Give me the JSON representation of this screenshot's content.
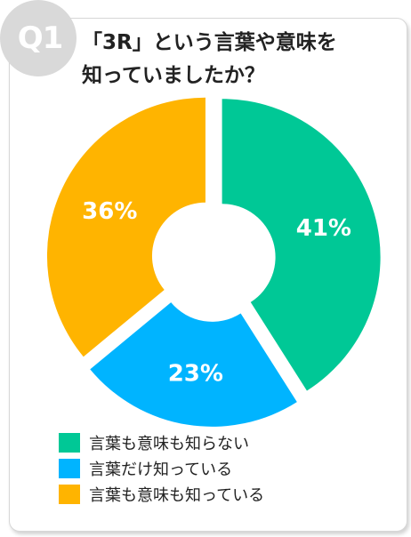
{
  "badge": {
    "label": "Q1"
  },
  "title": {
    "line1": "「3R」という言葉や意味を",
    "line2": "知っていましたか？"
  },
  "chart_data": {
    "type": "pie",
    "categories": [
      "言葉も意味も知らない",
      "言葉だけ知っている",
      "言葉も意味も知っている"
    ],
    "values": [
      41,
      23,
      36
    ],
    "value_labels": [
      "41%",
      "23%",
      "36%"
    ],
    "colors": [
      "#00c896",
      "#00b4ff",
      "#ffb400"
    ],
    "legend_position": "bottom-left"
  }
}
